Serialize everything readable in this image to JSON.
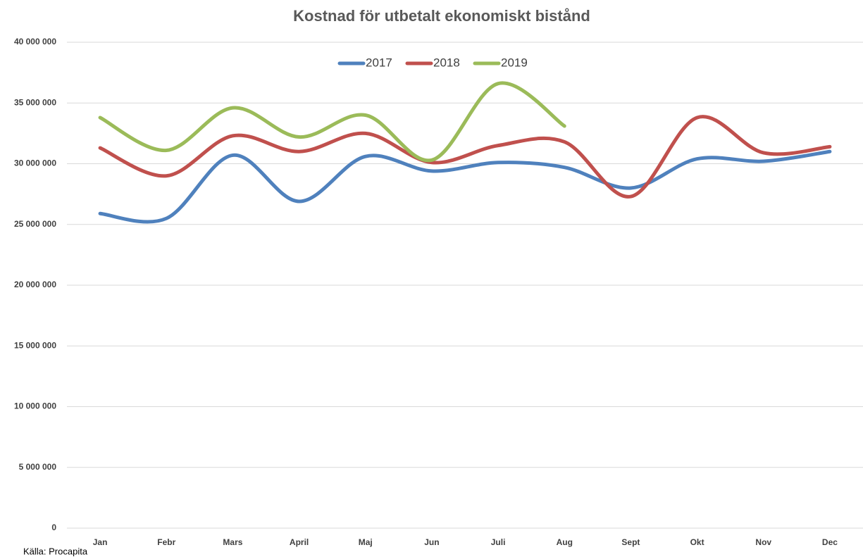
{
  "chart_data": {
    "type": "line",
    "title": "Kostnad för utbetalt ekonomiskt bistånd",
    "categories": [
      "Jan",
      "Febr",
      "Mars",
      "April",
      "Maj",
      "Jun",
      "Juli",
      "Aug",
      "Sept",
      "Okt",
      "Nov",
      "Dec"
    ],
    "series": [
      {
        "name": "2017",
        "color": "#4f81bd",
        "values": [
          25900000,
          25500000,
          30700000,
          26900000,
          30600000,
          29400000,
          30100000,
          29700000,
          28000000,
          30400000,
          30200000,
          31000000
        ]
      },
      {
        "name": "2018",
        "color": "#c0504d",
        "values": [
          31300000,
          29000000,
          32300000,
          31000000,
          32500000,
          30100000,
          31500000,
          31800000,
          27300000,
          33800000,
          30900000,
          31400000
        ]
      },
      {
        "name": "2019",
        "color": "#9bbb59",
        "values": [
          33800000,
          31100000,
          34600000,
          32200000,
          34000000,
          30300000,
          36600000,
          33100000,
          null,
          null,
          null,
          null
        ]
      }
    ],
    "ylim": [
      0,
      40000000
    ],
    "yticks": [
      0,
      {
        "value": 5000000,
        "label": "5 000 000"
      },
      {
        "value": 10000000,
        "label": "10 000 000"
      },
      {
        "value": 15000000,
        "label": "15 000 000"
      },
      {
        "value": 20000000,
        "label": "20 000 000"
      },
      {
        "value": 25000000,
        "label": "25 000 000"
      },
      {
        "value": 30000000,
        "label": "30 000 000"
      },
      {
        "value": 35000000,
        "label": "35 000 000"
      },
      {
        "value": 40000000,
        "label": "40 000 000"
      }
    ],
    "grid": true,
    "legend": "top",
    "source": "Källa: Procapita"
  }
}
